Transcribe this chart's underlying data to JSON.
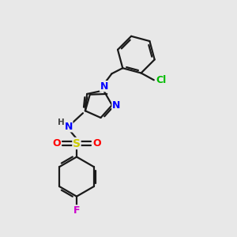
{
  "background_color": "#e8e8e8",
  "bond_color": "#1a1a1a",
  "atom_colors": {
    "N": "#0000ff",
    "Cl": "#00bb00",
    "S": "#cccc00",
    "O": "#ff0000",
    "F": "#cc00cc",
    "H": "#444444",
    "C": "#1a1a1a"
  },
  "figsize": [
    3.0,
    3.0
  ],
  "dpi": 100,
  "lw": 1.6
}
